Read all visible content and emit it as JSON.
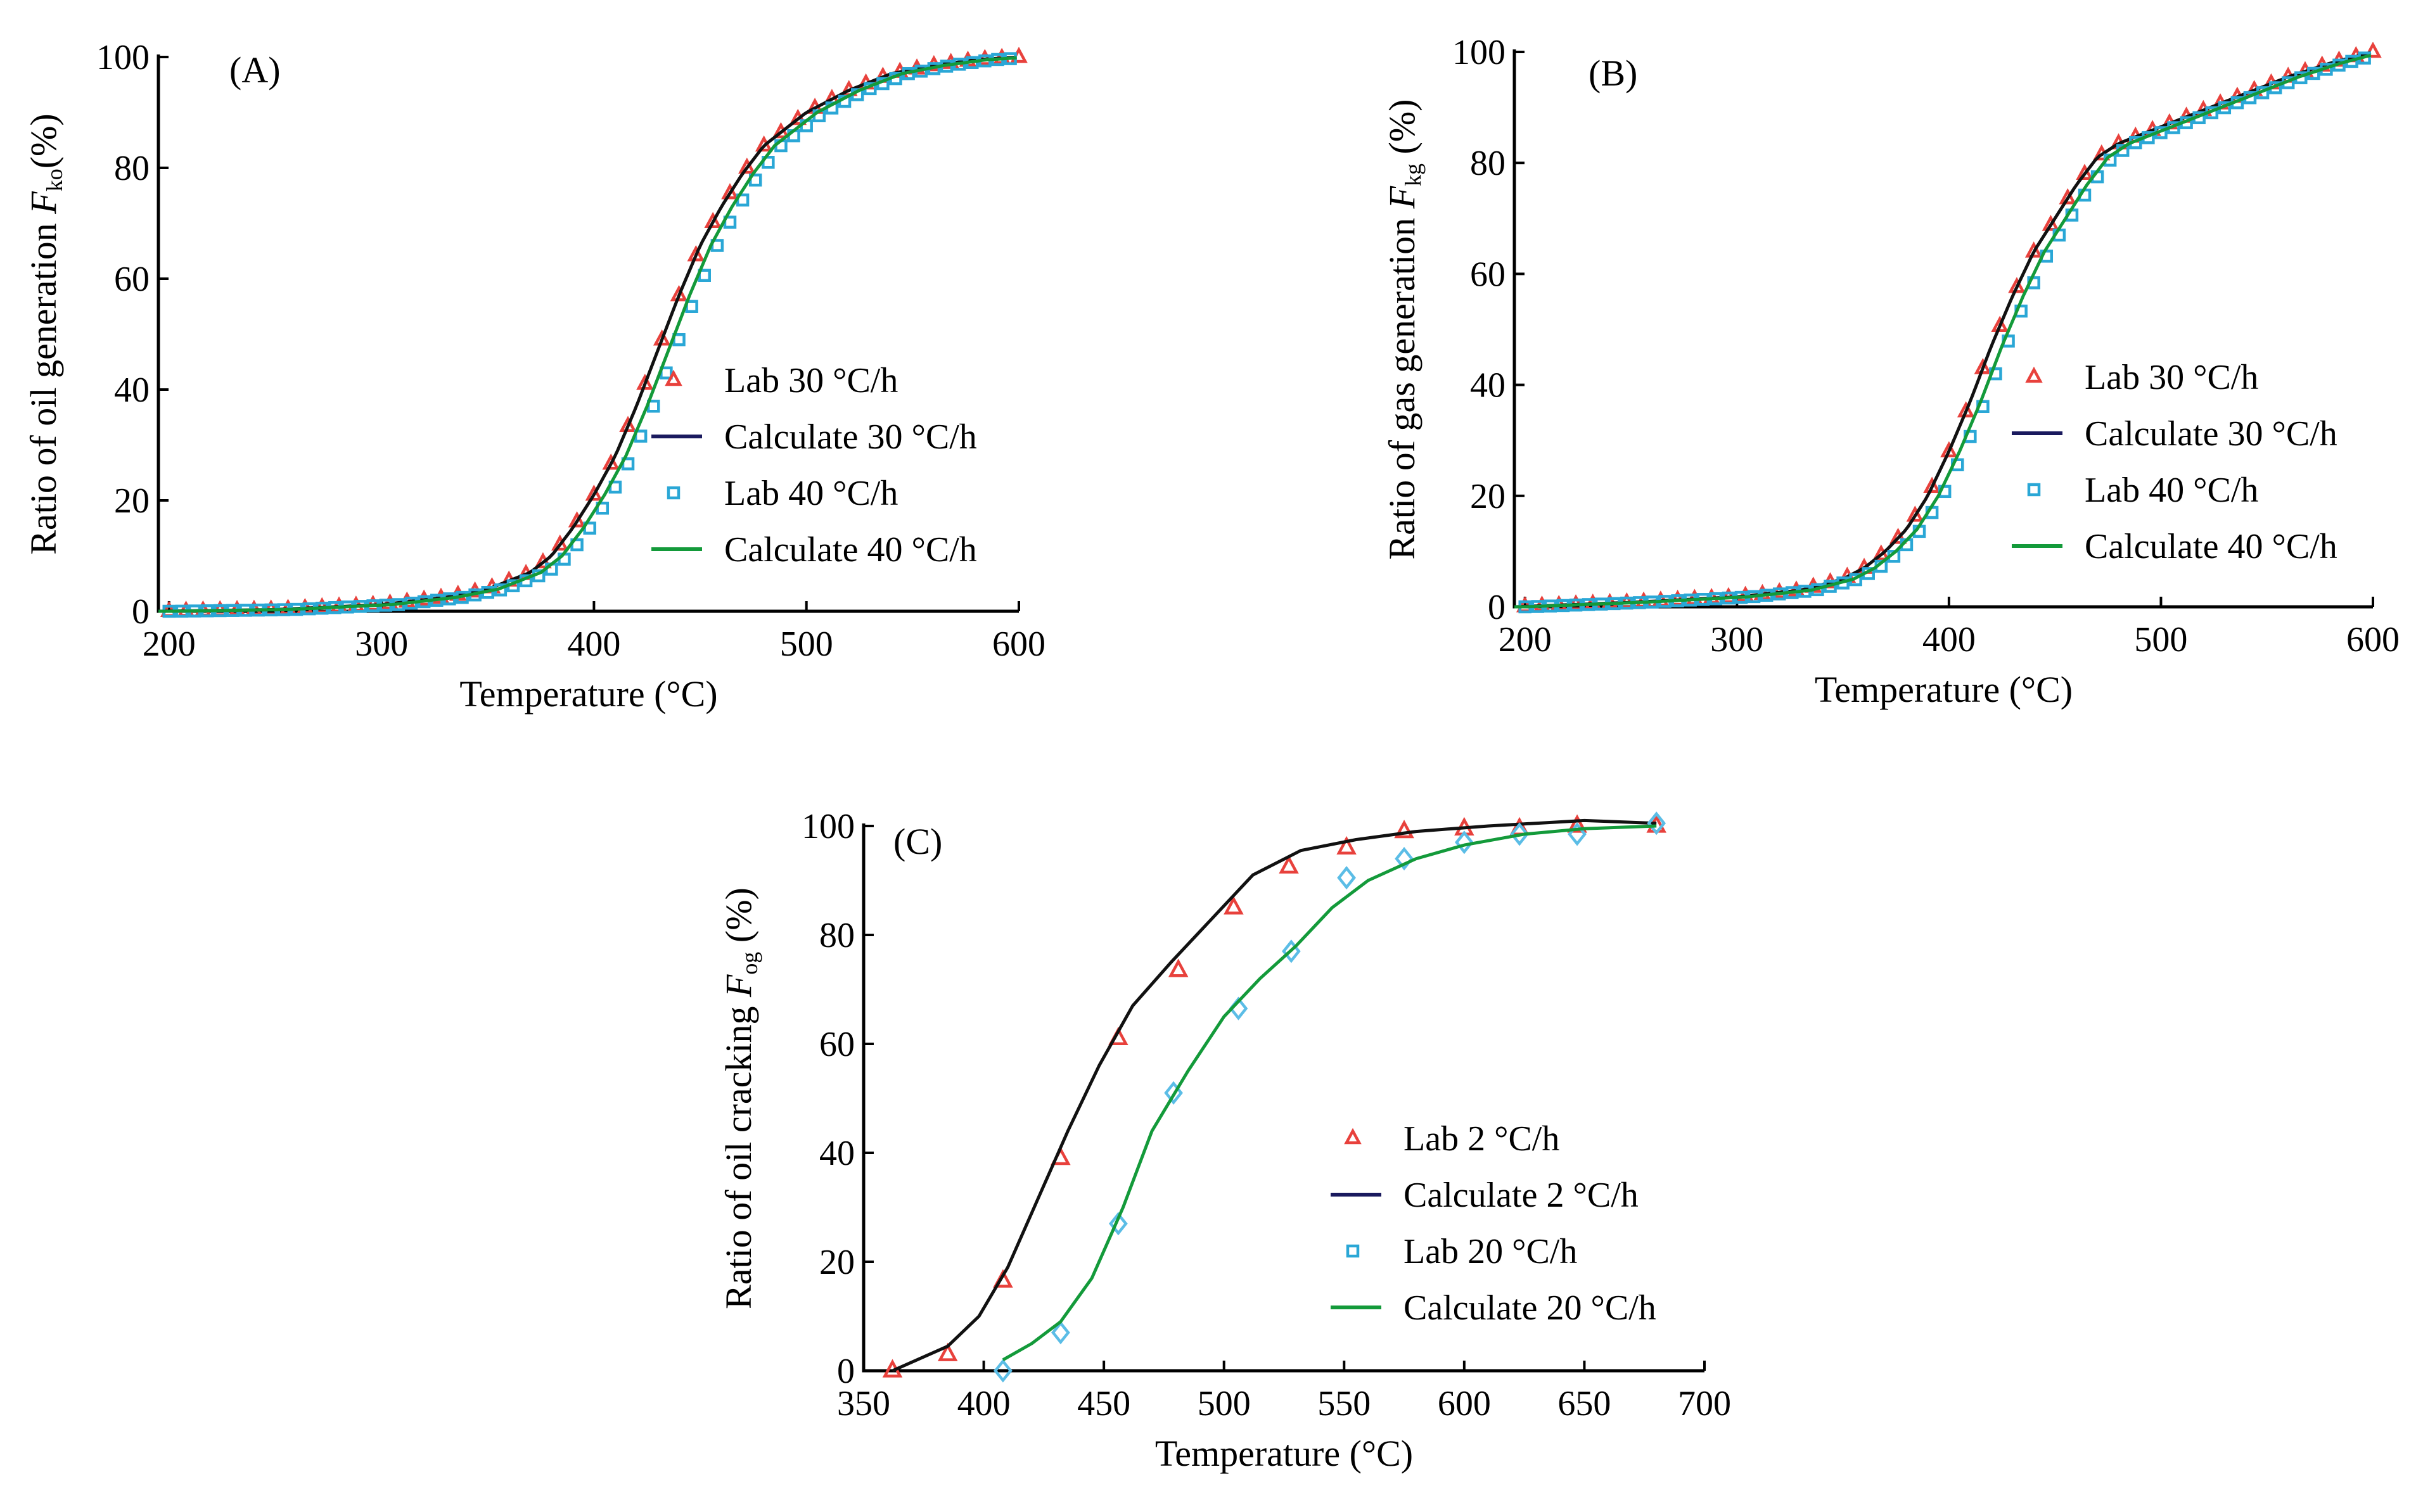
{
  "colors": {
    "lab_a": "#e8413c",
    "lab_b": "#2aa7d6",
    "lab_c_b": "#5bbde6",
    "calc_a": "#1a1a5e",
    "calc_a_draw": "#111111",
    "calc_b": "#139a3a"
  },
  "chart_data": [
    {
      "type": "line",
      "panel_label": "(A)",
      "xlabel": "Temperature (°C)",
      "ylabel_prefix": "Ratio of  oil generation ",
      "ylabel_var": "F",
      "ylabel_sub": "ko",
      "ylabel_suffix": "(%)",
      "xlim": [
        195,
        600
      ],
      "ylim": [
        0,
        100
      ],
      "xticks": [
        200,
        300,
        400,
        500,
        600
      ],
      "yticks": [
        0,
        20,
        40,
        60,
        80,
        100
      ],
      "legend": [
        {
          "label": "Lab 30 °C/h",
          "kind": "triangle",
          "color_key": "lab_a"
        },
        {
          "label": "Calculate 30 °C/h",
          "kind": "line",
          "color_key": "calc_a"
        },
        {
          "label": "Lab 40 °C/h",
          "kind": "square",
          "color_key": "lab_b"
        },
        {
          "label": "Calculate 40 °C/h",
          "kind": "line",
          "color_key": "calc_b"
        }
      ],
      "series": [
        {
          "name": "Lab 30 °C/h",
          "kind": "triangle",
          "color_key": "lab_a",
          "shift": 0,
          "spacing": 8,
          "xmin": 200,
          "xmax": 600
        },
        {
          "name": "Calculate 30 °C/h",
          "kind": "line",
          "color_key": "calc_a_draw",
          "shift": 0,
          "xmin": 195,
          "xmax": 600
        },
        {
          "name": "Lab 40 °C/h",
          "kind": "square",
          "color_key": "lab_b",
          "shift": 8,
          "spacing": 6,
          "xmin": 200,
          "xmax": 600
        },
        {
          "name": "Calculate 40 °C/h",
          "kind": "line",
          "color_key": "calc_b",
          "shift": 5,
          "xmin": 195,
          "xmax": 600
        }
      ],
      "curve": {
        "x": [
          195,
          250,
          300,
          330,
          350,
          370,
          380,
          390,
          400,
          410,
          420,
          430,
          440,
          450,
          460,
          470,
          480,
          500,
          520,
          540,
          560,
          580,
          600
        ],
        "y": [
          0,
          0.3,
          1.2,
          2.5,
          4,
          7,
          10,
          15,
          21,
          28,
          37,
          47,
          57,
          66,
          73,
          79,
          84,
          90,
          94,
          97,
          98.5,
          99.5,
          100
        ]
      }
    },
    {
      "type": "line",
      "panel_label": "(B)",
      "xlabel": "Temperature (°C)",
      "ylabel_prefix": "Ratio of  gas generation ",
      "ylabel_var": "F",
      "ylabel_sub": "kg",
      "ylabel_suffix": " (%)",
      "xlim": [
        195,
        600
      ],
      "ylim": [
        0,
        100
      ],
      "xticks": [
        200,
        300,
        400,
        500,
        600
      ],
      "yticks": [
        0,
        20,
        40,
        60,
        80,
        100
      ],
      "legend": [
        {
          "label": "Lab 30 °C/h",
          "kind": "triangle",
          "color_key": "lab_a"
        },
        {
          "label": "Calculate 30 °C/h",
          "kind": "line",
          "color_key": "calc_a"
        },
        {
          "label": "Lab 40 °C/h",
          "kind": "square",
          "color_key": "lab_b"
        },
        {
          "label": "Calculate 40 °C/h",
          "kind": "line",
          "color_key": "calc_b"
        }
      ],
      "series": [
        {
          "name": "Lab 30 °C/h",
          "kind": "triangle",
          "color_key": "lab_a",
          "shift": 0,
          "spacing": 8,
          "xmin": 200,
          "xmax": 600
        },
        {
          "name": "Calculate 30 °C/h",
          "kind": "line",
          "color_key": "calc_a_draw",
          "shift": 0,
          "xmin": 195,
          "xmax": 600
        },
        {
          "name": "Lab 40 °C/h",
          "kind": "square",
          "color_key": "lab_b",
          "shift": 7,
          "spacing": 6,
          "xmin": 200,
          "xmax": 600
        },
        {
          "name": "Calculate 40 °C/h",
          "kind": "line",
          "color_key": "calc_b",
          "shift": 5,
          "xmin": 195,
          "xmax": 600
        }
      ],
      "curve": {
        "x": [
          195,
          250,
          300,
          330,
          350,
          360,
          370,
          380,
          390,
          400,
          410,
          420,
          430,
          440,
          450,
          460,
          470,
          480,
          500,
          520,
          540,
          560,
          580,
          600
        ],
        "y": [
          0,
          0.8,
          1.8,
          3,
          5,
          7,
          10,
          14,
          20,
          28,
          37,
          47,
          56,
          64,
          70,
          76,
          81,
          83.5,
          86.5,
          89.5,
          92.5,
          95.5,
          98,
          100
        ]
      }
    },
    {
      "type": "line",
      "panel_label": "(C)",
      "xlabel": "Temperature (°C)",
      "ylabel_prefix": "Ratio of  oil cracking ",
      "ylabel_var": "F",
      "ylabel_sub": "og",
      "ylabel_suffix": " (%)",
      "xlim": [
        350,
        700
      ],
      "ylim": [
        0,
        100
      ],
      "xticks": [
        350,
        400,
        450,
        500,
        550,
        600,
        650,
        700
      ],
      "yticks": [
        0,
        20,
        40,
        60,
        80,
        100
      ],
      "legend": [
        {
          "label": "Lab 2 °C/h",
          "kind": "triangle",
          "color_key": "lab_a"
        },
        {
          "label": "Calculate 2 °C/h",
          "kind": "line",
          "color_key": "calc_a"
        },
        {
          "label": "Lab 20 °C/h",
          "kind": "square",
          "color_key": "lab_b"
        },
        {
          "label": "Calculate 20  °C/h",
          "kind": "line",
          "color_key": "calc_b"
        }
      ],
      "series": [
        {
          "name": "Lab 2 °C/h",
          "kind": "triangle",
          "color_key": "lab_a",
          "x": [
            362,
            385,
            408,
            432,
            456,
            481,
            504,
            527,
            551,
            575,
            600,
            623,
            647,
            680
          ],
          "y": [
            0,
            3,
            16.5,
            39,
            61,
            73.5,
            85,
            92.5,
            96,
            99,
            99.5,
            99.5,
            100,
            100
          ]
        },
        {
          "name": "Calculate 2 °C/h",
          "kind": "line",
          "color_key": "calc_a_draw",
          "x": [
            362,
            385,
            398,
            410,
            422,
            435,
            448,
            462,
            478,
            495,
            512,
            532,
            555,
            580,
            610,
            650,
            680
          ],
          "y": [
            0,
            4.5,
            10,
            19,
            31,
            44,
            56,
            67,
            75,
            83,
            91,
            95.5,
            97.5,
            99,
            100,
            101,
            100.5
          ]
        },
        {
          "name": "Lab 20 °C/h",
          "kind": "diamond",
          "color_key": "lab_c_b",
          "x": [
            408,
            432,
            456,
            479,
            506,
            528,
            551,
            575,
            600,
            623,
            647,
            680
          ],
          "y": [
            0,
            7,
            27,
            51,
            66.5,
            77,
            90.5,
            94,
            97,
            98.5,
            98.5,
            100.5
          ]
        },
        {
          "name": "Calculate 20  °C/h",
          "kind": "line",
          "color_key": "calc_b",
          "x": [
            408,
            420,
            432,
            445,
            458,
            470,
            485,
            500,
            515,
            530,
            545,
            560,
            580,
            600,
            625,
            650,
            680
          ],
          "y": [
            2,
            5,
            9,
            17,
            30,
            44,
            55,
            65,
            72,
            78,
            85,
            90,
            94,
            96.5,
            98.5,
            99.5,
            100
          ]
        }
      ]
    }
  ]
}
